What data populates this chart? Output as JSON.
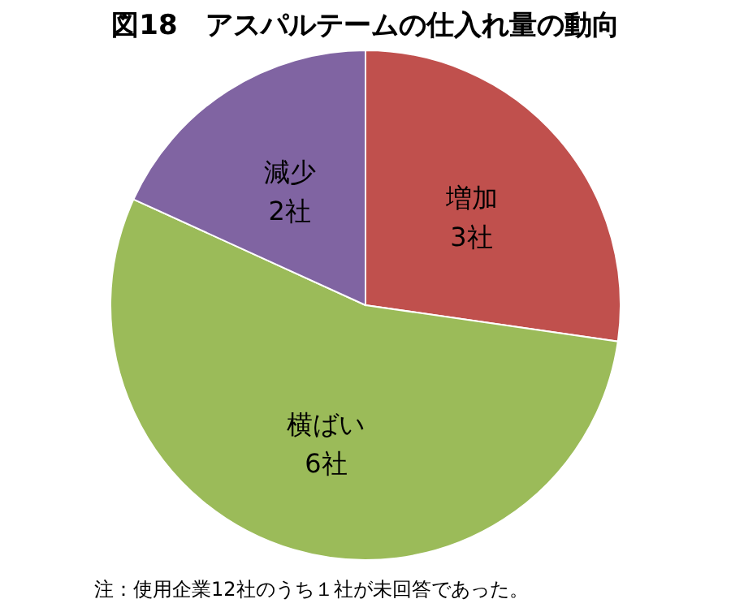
{
  "chart_data": {
    "type": "pie",
    "title": "図18　アスパルテームの仕入れ量の動向",
    "categories": [
      "増加",
      "横ばい",
      "減少"
    ],
    "values": [
      3,
      6,
      2
    ],
    "colors": [
      "#c0504d",
      "#9bbb59",
      "#8064a2"
    ],
    "value_labels": [
      "3社",
      "6社",
      "2社"
    ],
    "annotations": [
      "注：使用企業12社のうち１社が未回答であった。"
    ]
  }
}
